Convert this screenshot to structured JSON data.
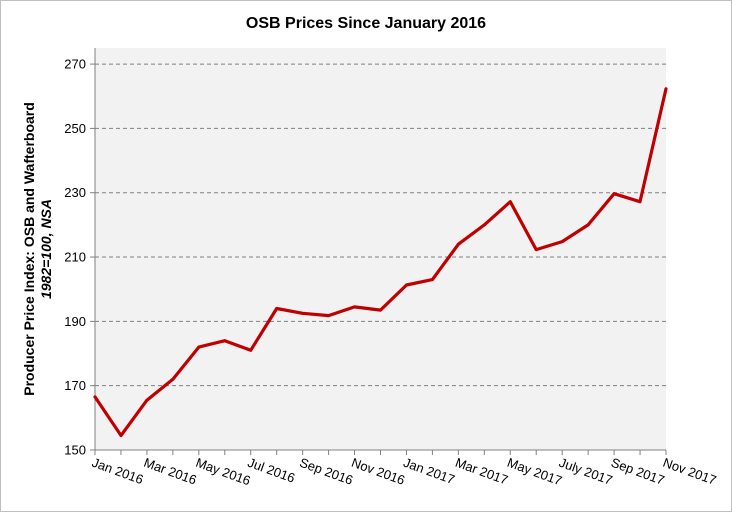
{
  "chart_data": {
    "type": "line",
    "title": "OSB Prices Since January 2016",
    "xlabel": "",
    "ylabel": "Producer Price Index: OSB and Wafterboard",
    "ylabel_sub": "1982=100, NSA",
    "ylim": [
      150,
      275
    ],
    "yticks": [
      150,
      170,
      190,
      210,
      230,
      250,
      270
    ],
    "grid": true,
    "legend": "none",
    "x_tick_labels": [
      "Jan 2016",
      "Mar 2016",
      "May 2016",
      "Jul 2016",
      "Sep 2016",
      "Nov 2016",
      "Jan 2017",
      "Mar 2017",
      "May 2017",
      "July 2017",
      "Sep 2017",
      "Nov 2017"
    ],
    "x": [
      "Jan 2016",
      "Feb 2016",
      "Mar 2016",
      "Apr 2016",
      "May 2016",
      "Jun 2016",
      "Jul 2016",
      "Aug 2016",
      "Sep 2016",
      "Oct 2016",
      "Nov 2016",
      "Dec 2016",
      "Jan 2017",
      "Feb 2017",
      "Mar 2017",
      "Apr 2017",
      "May 2017",
      "Jun 2017",
      "Jul 2017",
      "Aug 2017",
      "Sep 2017",
      "Oct 2017",
      "Nov 2017"
    ],
    "series": [
      {
        "values": [
          166.5,
          154.5,
          165.5,
          172,
          182,
          184,
          181,
          194,
          192.5,
          191.8,
          194.5,
          193.5,
          201.3,
          203,
          214,
          220,
          227.2,
          212.3,
          214.8,
          220,
          229.7,
          227.2,
          262.3
        ]
      }
    ],
    "colors": {
      "line": "#c00000",
      "plot_bg": "#f2f2f2",
      "grid": "#808080"
    }
  }
}
